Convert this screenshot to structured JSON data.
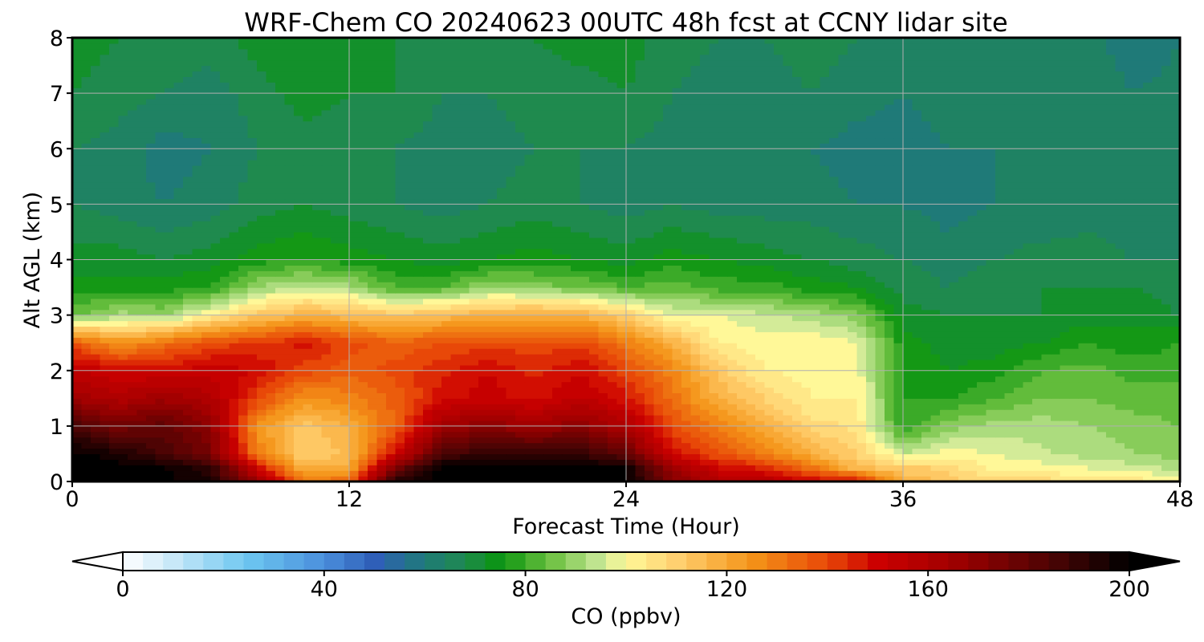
{
  "chart_data": {
    "type": "heatmap",
    "title": "WRF-Chem CO  20240623 00UTC 48h fcst at CCNY lidar site",
    "xlabel": "Forecast Time (Hour)",
    "ylabel": "Alt AGL (km)",
    "xlim": [
      0,
      48
    ],
    "ylim": [
      0,
      8
    ],
    "xticks": [
      "0",
      "12",
      "24",
      "36",
      "48"
    ],
    "yticks": [
      "0",
      "1",
      "2",
      "3",
      "4",
      "5",
      "6",
      "7",
      "8"
    ],
    "grid": true,
    "colorbar": {
      "label": "CO  (ppbv)",
      "ticks": [
        "0",
        "40",
        "80",
        "120",
        "160",
        "200"
      ],
      "range": [
        0,
        200
      ],
      "extend": "both",
      "stops": [
        {
          "v": 0,
          "color": "#ffffff"
        },
        {
          "v": 10,
          "color": "#c8e8f8"
        },
        {
          "v": 25,
          "color": "#6cc6f0"
        },
        {
          "v": 40,
          "color": "#4a8fdc"
        },
        {
          "v": 50,
          "color": "#2f5fb8"
        },
        {
          "v": 60,
          "color": "#1f7a78"
        },
        {
          "v": 68,
          "color": "#1f8a4e"
        },
        {
          "v": 75,
          "color": "#0a9410"
        },
        {
          "v": 85,
          "color": "#6cc040"
        },
        {
          "v": 95,
          "color": "#c8e898"
        },
        {
          "v": 100,
          "color": "#fff898"
        },
        {
          "v": 110,
          "color": "#ffd070"
        },
        {
          "v": 125,
          "color": "#f49418"
        },
        {
          "v": 140,
          "color": "#e84808"
        },
        {
          "v": 150,
          "color": "#cc0000"
        },
        {
          "v": 165,
          "color": "#a00000"
        },
        {
          "v": 185,
          "color": "#4a0404"
        },
        {
          "v": 200,
          "color": "#000000"
        }
      ]
    },
    "grid_x": [
      0,
      2,
      4,
      6,
      8,
      10,
      12,
      14,
      16,
      18,
      20,
      22,
      24,
      26,
      28,
      30,
      32,
      34,
      36,
      38,
      40,
      42,
      44,
      46,
      48
    ],
    "grid_y": [
      0,
      0.25,
      0.5,
      1,
      1.5,
      2,
      2.5,
      3,
      3.5,
      4,
      5,
      6,
      7,
      8
    ],
    "z": [
      [
        200,
        200,
        200,
        195,
        168,
        130,
        135,
        195,
        200,
        200,
        200,
        200,
        200,
        172,
        160,
        158,
        150,
        150,
        118,
        112,
        108,
        108,
        104,
        104,
        100
      ],
      [
        200,
        200,
        198,
        190,
        150,
        118,
        120,
        175,
        200,
        200,
        200,
        200,
        198,
        165,
        150,
        145,
        132,
        115,
        112,
        108,
        100,
        100,
        98,
        96,
        92
      ],
      [
        200,
        195,
        185,
        175,
        130,
        110,
        115,
        150,
        185,
        190,
        190,
        190,
        180,
        150,
        138,
        130,
        118,
        110,
        95,
        100,
        98,
        95,
        92,
        90,
        88
      ],
      [
        185,
        175,
        180,
        170,
        125,
        112,
        118,
        135,
        165,
        170,
        165,
        170,
        160,
        140,
        128,
        118,
        108,
        105,
        78,
        88,
        92,
        92,
        90,
        88,
        86
      ],
      [
        165,
        160,
        165,
        160,
        140,
        125,
        128,
        135,
        148,
        152,
        148,
        155,
        148,
        132,
        118,
        110,
        102,
        102,
        78,
        78,
        82,
        86,
        86,
        84,
        84
      ],
      [
        155,
        150,
        150,
        152,
        150,
        140,
        135,
        140,
        145,
        150,
        145,
        150,
        140,
        128,
        112,
        102,
        100,
        100,
        78,
        74,
        76,
        82,
        84,
        80,
        80
      ],
      [
        138,
        125,
        132,
        140,
        142,
        148,
        140,
        135,
        138,
        140,
        140,
        140,
        130,
        118,
        102,
        100,
        102,
        98,
        76,
        72,
        72,
        74,
        78,
        76,
        78
      ],
      [
        85,
        92,
        90,
        102,
        112,
        118,
        115,
        112,
        115,
        118,
        120,
        118,
        110,
        98,
        98,
        95,
        92,
        88,
        72,
        70,
        70,
        70,
        72,
        72,
        70
      ],
      [
        75,
        76,
        76,
        78,
        90,
        95,
        92,
        82,
        82,
        90,
        88,
        86,
        82,
        84,
        80,
        80,
        76,
        74,
        68,
        66,
        68,
        70,
        70,
        70,
        68
      ],
      [
        72,
        72,
        70,
        72,
        76,
        78,
        76,
        74,
        72,
        74,
        76,
        74,
        72,
        76,
        74,
        72,
        70,
        68,
        66,
        64,
        66,
        68,
        68,
        66,
        66
      ],
      [
        66,
        64,
        62,
        64,
        68,
        70,
        68,
        66,
        64,
        66,
        68,
        66,
        64,
        66,
        64,
        64,
        64,
        62,
        62,
        60,
        62,
        62,
        64,
        62,
        64
      ],
      [
        66,
        64,
        60,
        62,
        66,
        68,
        68,
        66,
        64,
        64,
        66,
        66,
        66,
        64,
        62,
        62,
        62,
        60,
        60,
        62,
        62,
        64,
        64,
        62,
        64
      ],
      [
        70,
        68,
        66,
        64,
        68,
        72,
        70,
        70,
        66,
        66,
        68,
        68,
        70,
        66,
        64,
        64,
        66,
        64,
        62,
        64,
        64,
        66,
        66,
        62,
        64
      ],
      [
        72,
        70,
        68,
        68,
        72,
        74,
        72,
        70,
        68,
        68,
        70,
        72,
        72,
        68,
        66,
        66,
        68,
        66,
        64,
        66,
        66,
        66,
        64,
        58,
        62
      ]
    ]
  }
}
